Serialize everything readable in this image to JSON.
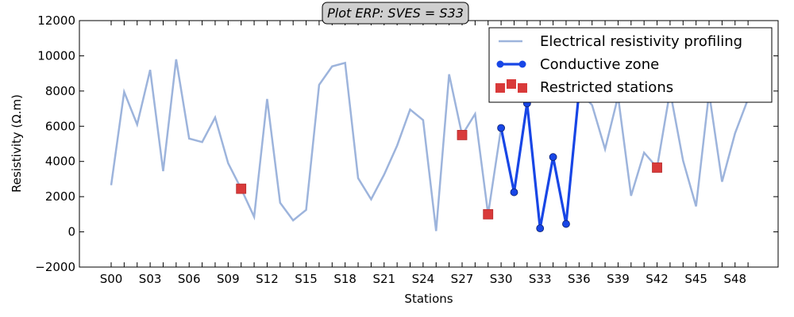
{
  "chart_data": {
    "type": "line",
    "title": "Plot ERP: SVES = S33",
    "xlabel": "Stations",
    "ylabel": "Resistivity (Ω.m)",
    "ylim": [
      -2000,
      12000
    ],
    "yticks": [
      -2000,
      0,
      2000,
      4000,
      6000,
      8000,
      10000,
      12000
    ],
    "ytick_labels": [
      "−2000",
      "0",
      "2000",
      "4000",
      "6000",
      "8000",
      "10000",
      "12000"
    ],
    "xtick_labels": [
      "S00",
      "S03",
      "S06",
      "S09",
      "S12",
      "S15",
      "S18",
      "S21",
      "S24",
      "S27",
      "S30",
      "S33",
      "S36",
      "S39",
      "S42",
      "S45",
      "S48"
    ],
    "xtick_every": 3,
    "grid": false,
    "legend_position": "top-right",
    "series": [
      {
        "name": "Electrical resistivity profiling",
        "color": "#9db4dc",
        "style": "line",
        "x": [
          0,
          1,
          2,
          3,
          4,
          5,
          6,
          7,
          8,
          9,
          10,
          11,
          12,
          13,
          14,
          15,
          16,
          17,
          18,
          19,
          20,
          21,
          22,
          23,
          24,
          25,
          26,
          27,
          28,
          29,
          30,
          31,
          32,
          33,
          34,
          35,
          36,
          37,
          38,
          39,
          40,
          41,
          42,
          43,
          44,
          45,
          46,
          47,
          48,
          49
        ],
        "values": [
          2650,
          7950,
          6100,
          9200,
          3450,
          9800,
          5300,
          5100,
          6500,
          3900,
          2450,
          850,
          7550,
          1650,
          650,
          1250,
          8350,
          9400,
          9600,
          3050,
          1850,
          3250,
          4900,
          6950,
          6350,
          50,
          8950,
          5500,
          6700,
          1000,
          5900,
          2250,
          7300,
          200,
          4250,
          450,
          8000,
          7200,
          4700,
          7700,
          2050,
          4500,
          3650,
          8000,
          4050,
          1450,
          7900,
          2850,
          5600,
          7550
        ]
      },
      {
        "name": "Conductive zone",
        "color": "#1846e6",
        "style": "line-marker",
        "x": [
          30,
          31,
          32,
          33,
          34,
          35,
          36
        ],
        "values": [
          5900,
          2250,
          7300,
          200,
          4250,
          450,
          8000
        ]
      },
      {
        "name": "Restricted stations",
        "color": "#d93a3a",
        "style": "square-marker",
        "x": [
          10,
          27,
          29,
          42
        ],
        "values": [
          2450,
          5500,
          1000,
          3650
        ]
      }
    ]
  }
}
